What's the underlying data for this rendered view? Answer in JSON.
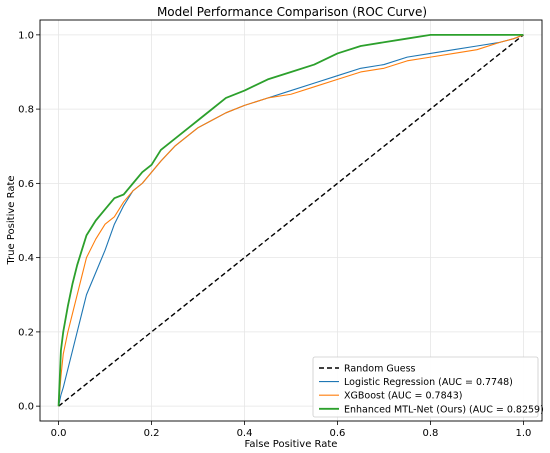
{
  "chart_data": {
    "type": "line",
    "title": "Model Performance Comparison (ROC Curve)",
    "xlabel": "False Positive Rate",
    "ylabel": "True Positive Rate",
    "xlim": [
      -0.04,
      1.04
    ],
    "ylim": [
      -0.04,
      1.04
    ],
    "xticks": [
      "0.0",
      "0.2",
      "0.4",
      "0.6",
      "0.8",
      "1.0"
    ],
    "yticks": [
      "0.0",
      "0.2",
      "0.4",
      "0.6",
      "0.8",
      "1.0"
    ],
    "grid": true,
    "legend_position": "lower-right",
    "series": [
      {
        "name": "Random Guess",
        "color": "#000000",
        "style": "dashed",
        "x": [
          0,
          1
        ],
        "y": [
          0,
          1
        ]
      },
      {
        "name": "Logistic Regression (AUC = 0.7748)",
        "color": "#1f77b4",
        "style": "solid",
        "x": [
          0,
          0.005,
          0.01,
          0.02,
          0.03,
          0.04,
          0.05,
          0.06,
          0.08,
          0.1,
          0.12,
          0.14,
          0.16,
          0.18,
          0.2,
          0.22,
          0.25,
          0.28,
          0.3,
          0.33,
          0.36,
          0.4,
          0.45,
          0.5,
          0.55,
          0.6,
          0.65,
          0.7,
          0.75,
          0.8,
          0.85,
          0.9,
          0.95,
          0.98,
          1.0
        ],
        "y": [
          0,
          0.03,
          0.05,
          0.1,
          0.15,
          0.2,
          0.25,
          0.3,
          0.36,
          0.42,
          0.49,
          0.54,
          0.58,
          0.6,
          0.63,
          0.66,
          0.7,
          0.73,
          0.75,
          0.77,
          0.79,
          0.81,
          0.83,
          0.85,
          0.87,
          0.89,
          0.91,
          0.92,
          0.94,
          0.95,
          0.96,
          0.97,
          0.98,
          0.99,
          1.0
        ]
      },
      {
        "name": "XGBoost (AUC = 0.7843)",
        "color": "#ff7f0e",
        "style": "solid",
        "x": [
          0,
          0.005,
          0.01,
          0.02,
          0.03,
          0.04,
          0.05,
          0.06,
          0.08,
          0.1,
          0.12,
          0.14,
          0.16,
          0.18,
          0.2,
          0.22,
          0.25,
          0.28,
          0.3,
          0.33,
          0.36,
          0.4,
          0.45,
          0.5,
          0.55,
          0.6,
          0.65,
          0.7,
          0.75,
          0.8,
          0.85,
          0.9,
          0.95,
          0.98,
          1.0
        ],
        "y": [
          0,
          0.08,
          0.14,
          0.2,
          0.25,
          0.3,
          0.35,
          0.4,
          0.45,
          0.49,
          0.51,
          0.55,
          0.58,
          0.6,
          0.63,
          0.66,
          0.7,
          0.73,
          0.75,
          0.77,
          0.79,
          0.81,
          0.83,
          0.84,
          0.86,
          0.88,
          0.9,
          0.91,
          0.93,
          0.94,
          0.95,
          0.96,
          0.98,
          0.99,
          1.0
        ]
      },
      {
        "name": "Enhanced MTL-Net (Ours) (AUC = 0.8259)",
        "color": "#2ca02c",
        "style": "solid",
        "x": [
          0,
          0.005,
          0.01,
          0.02,
          0.03,
          0.04,
          0.05,
          0.06,
          0.08,
          0.1,
          0.12,
          0.14,
          0.16,
          0.18,
          0.2,
          0.22,
          0.25,
          0.28,
          0.3,
          0.33,
          0.36,
          0.4,
          0.45,
          0.5,
          0.55,
          0.6,
          0.65,
          0.7,
          0.75,
          0.8,
          0.85,
          0.9,
          0.95,
          0.98,
          1.0
        ],
        "y": [
          0,
          0.15,
          0.2,
          0.27,
          0.33,
          0.38,
          0.42,
          0.46,
          0.5,
          0.53,
          0.56,
          0.57,
          0.6,
          0.63,
          0.65,
          0.69,
          0.72,
          0.75,
          0.77,
          0.8,
          0.83,
          0.85,
          0.88,
          0.9,
          0.92,
          0.95,
          0.97,
          0.98,
          0.99,
          1.0,
          1.0,
          1.0,
          1.0,
          1.0,
          1.0
        ]
      }
    ]
  }
}
